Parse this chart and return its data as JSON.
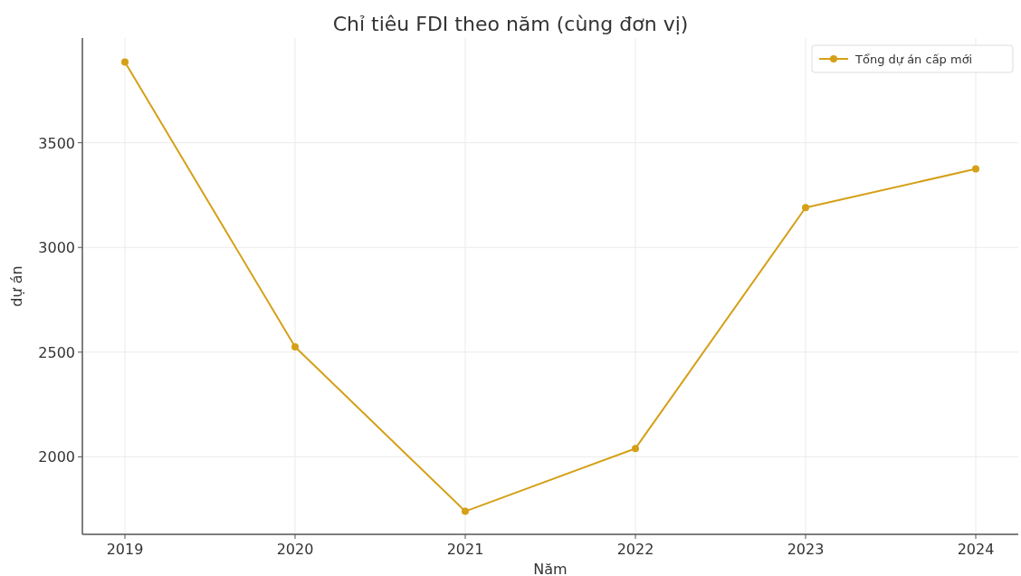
{
  "chart_data": {
    "type": "line",
    "title": "Chỉ tiêu FDI theo năm (cùng đơn vị)",
    "xlabel": "Năm",
    "ylabel": "dự án",
    "x": [
      2019,
      2020,
      2021,
      2022,
      2023,
      2024
    ],
    "series": [
      {
        "name": "Tổng dự án cấp mới",
        "color": "#d4a017",
        "values": [
          3885,
          2525,
          1740,
          2040,
          3190,
          3375
        ]
      }
    ],
    "xlim": [
      2018.75,
      2024.25
    ],
    "xticks": [
      2019,
      2020,
      2021,
      2022,
      2023,
      2024
    ],
    "ylim": [
      1630,
      4000
    ],
    "yticks": [
      2000,
      2500,
      3000,
      3500
    ],
    "grid": true,
    "legend": "top right",
    "marker": "circle",
    "line_style": "solid"
  }
}
